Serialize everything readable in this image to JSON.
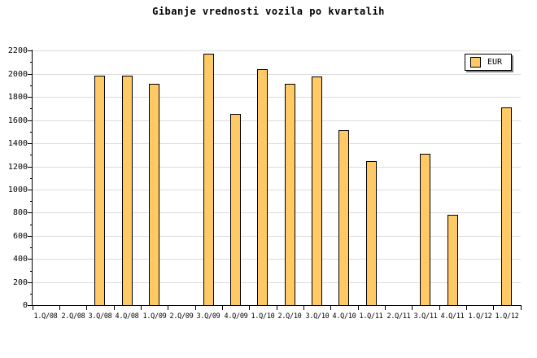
{
  "title": "Gibanje vrednosti vozila po kvartalih",
  "legend": {
    "label": "EUR"
  },
  "colors": {
    "background": "#ffffff",
    "bar_fill": "#ffc966",
    "bar_border": "#000000",
    "gridline": "#dcdcdc",
    "axis": "#000000",
    "legend_background": "#ffffff",
    "legend_shadow": "#808080",
    "text": "#000000"
  },
  "chart_data": {
    "type": "bar",
    "title": "Gibanje vrednosti vozila po kvartalih",
    "xlabel": "",
    "ylabel": "",
    "categories": [
      "1.Q/08",
      "2.Q/08",
      "3.Q/08",
      "4.Q/08",
      "1.Q/09",
      "2.Q/09",
      "3.Q/09",
      "4.Q/09",
      "1.Q/10",
      "2.Q/10",
      "3.Q/10",
      "4.Q/10",
      "1.Q/11",
      "2.Q/11",
      "3.Q/11",
      "4.Q/11",
      "1.Q/12",
      "1.Q/12"
    ],
    "series": [
      {
        "name": "EUR",
        "values": [
          null,
          null,
          1980,
          1980,
          1910,
          null,
          2175,
          1650,
          2040,
          1910,
          1975,
          1515,
          1245,
          null,
          1310,
          780,
          null,
          1710
        ]
      }
    ],
    "ylim": [
      0,
      2200
    ],
    "yticks": [
      0,
      200,
      400,
      600,
      800,
      1000,
      1200,
      1400,
      1600,
      1800,
      2000,
      2200
    ],
    "ytick_step": 200,
    "ytick_minor_step": 100,
    "grid": true,
    "legend_position": "top-right"
  }
}
